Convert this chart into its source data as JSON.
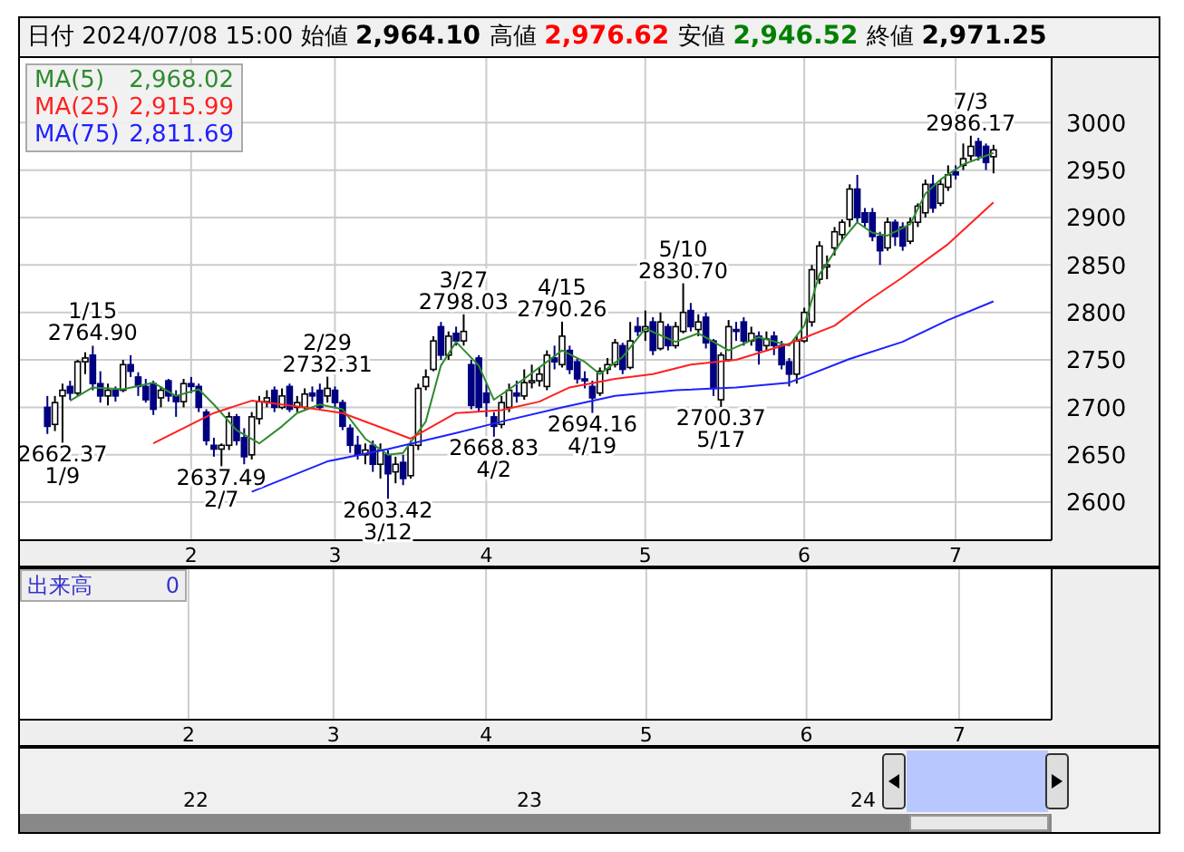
{
  "chart_data": {
    "type": "candlestick",
    "title": "日付 2024/07/08 15:00 始値 2,964.10 高値 2,976.62 安値 2,946.52 終値 2,971.25",
    "colors": [
      "#000080",
      "#ffffff",
      "#ffffff",
      "#000080",
      "#ffffff",
      "#ffffff",
      "#000080",
      "#000080",
      "#ffffff",
      "#000080",
      "#ffffff",
      "#000080",
      "#000080",
      "#000080",
      "#000080",
      "#ffffff",
      "#000080",
      "#000080",
      "#ffffff",
      "#000080",
      "#000080",
      "#000080",
      "#000080",
      "#ffffff",
      "#ffffff",
      "#000080",
      "#000080",
      "#ffffff",
      "#ffffff",
      "#ffffff",
      "#000080",
      "#ffffff",
      "#000080",
      "#ffffff",
      "#ffffff",
      "#000080",
      "#000080",
      "#ffffff",
      "#000080",
      "#000080",
      "#000080",
      "#000080",
      "#ffffff",
      "#000080",
      "#ffffff",
      "#000080",
      "#ffffff",
      "#000080",
      "#ffffff",
      "#ffffff",
      "#ffffff",
      "#ffffff",
      "#000080",
      "#ffffff",
      "#000080",
      "#ffffff",
      "#000080",
      "#000080",
      "#000080",
      "#000080",
      "#ffffff",
      "#ffffff",
      "#000080",
      "#ffffff",
      "#ffffff",
      "#ffffff",
      "#ffffff",
      "#000080",
      "#ffffff",
      "#000080",
      "#000080",
      "#000080",
      "#000080",
      "#ffffff",
      "#ffffff",
      "#ffffff",
      "#000080",
      "#ffffff",
      "#000080",
      "#ffffff",
      "#000080",
      "#ffffff",
      "#000080",
      "#ffffff",
      "#ffffff",
      "#000080",
      "#ffffff",
      "#000080",
      "#000080",
      "#ffffff",
      "#ffffff",
      "#000080",
      "#000080",
      "#ffffff",
      "#000080",
      "#ffffff",
      "#000080",
      "#000080",
      "#000080",
      "#ffffff",
      "#ffffff",
      "#ffffff",
      "#ffffff",
      "#ffffff",
      "#ffffff",
      "#ffffff",
      "#ffffff",
      "#000080",
      "#000080",
      "#000080",
      "#000080",
      "#ffffff",
      "#000080",
      "#000080",
      "#ffffff",
      "#ffffff",
      "#ffffff",
      "#000080",
      "#ffffff",
      "#ffffff",
      "#000080",
      "#ffffff",
      "#ffffff",
      "#000080",
      "#000080",
      "#ffffff"
    ],
    "categories": [
      null,
      null,
      null,
      null,
      null,
      null,
      null,
      null,
      null,
      null,
      null,
      null,
      null,
      null,
      null,
      null,
      null,
      null,
      null,
      "2",
      null,
      null,
      null,
      null,
      null,
      null,
      null,
      null,
      null,
      null,
      null,
      null,
      null,
      null,
      null,
      null,
      null,
      null,
      "3",
      null,
      null,
      null,
      null,
      null,
      null,
      null,
      null,
      null,
      null,
      null,
      null,
      null,
      null,
      null,
      null,
      null,
      null,
      null,
      "4",
      null,
      null,
      null,
      null,
      null,
      null,
      null,
      null,
      null,
      null,
      null,
      null,
      null,
      null,
      null,
      null,
      null,
      null,
      null,
      null,
      "5",
      null,
      null,
      null,
      null,
      null,
      null,
      null,
      null,
      null,
      null,
      null,
      null,
      null,
      null,
      null,
      null,
      null,
      null,
      null,
      null,
      "6",
      null,
      null,
      null,
      null,
      null,
      null,
      null,
      null,
      null,
      null,
      null,
      null,
      null,
      null,
      null,
      null,
      null,
      null,
      null,
      "7",
      null,
      null,
      null,
      null,
      null
    ],
    "ohlc": [
      [
        2700,
        2712,
        2672,
        2680
      ],
      [
        2682,
        2712,
        2675,
        2705
      ],
      [
        2712,
        2725,
        2662.37,
        2718
      ],
      [
        2722,
        2728,
        2708,
        2715
      ],
      [
        2715,
        2750,
        2712,
        2748
      ],
      [
        2748,
        2758,
        2735,
        2752
      ],
      [
        2755,
        2764.9,
        2718,
        2725
      ],
      [
        2725,
        2738,
        2705,
        2712
      ],
      [
        2712,
        2725,
        2702,
        2718
      ],
      [
        2718,
        2722,
        2706,
        2712
      ],
      [
        2718,
        2750,
        2716,
        2745
      ],
      [
        2745,
        2755,
        2732,
        2738
      ],
      [
        2732,
        2737,
        2712,
        2722
      ],
      [
        2722,
        2730,
        2705,
        2708
      ],
      [
        2725,
        2728,
        2692,
        2698
      ],
      [
        2710,
        2722,
        2700,
        2718
      ],
      [
        2728,
        2730,
        2706,
        2712
      ],
      [
        2712,
        2718,
        2690,
        2706
      ],
      [
        2706,
        2730,
        2700,
        2725
      ],
      [
        2725,
        2732,
        2715,
        2722
      ],
      [
        2722,
        2725,
        2695,
        2700
      ],
      [
        2695,
        2698,
        2660,
        2665
      ],
      [
        2660,
        2668,
        2648,
        2656
      ],
      [
        2656,
        2662,
        2637.49,
        2660
      ],
      [
        2660,
        2695,
        2655,
        2690
      ],
      [
        2690,
        2693,
        2660,
        2665
      ],
      [
        2668,
        2678,
        2640,
        2648
      ],
      [
        2650,
        2695,
        2645,
        2690
      ],
      [
        2688,
        2712,
        2682,
        2706
      ],
      [
        2706,
        2718,
        2700,
        2710
      ],
      [
        2718,
        2722,
        2695,
        2700
      ],
      [
        2700,
        2720,
        2698,
        2712
      ],
      [
        2722,
        2725,
        2695,
        2698
      ],
      [
        2700,
        2712,
        2695,
        2705
      ],
      [
        2700,
        2720,
        2698,
        2714
      ],
      [
        2715,
        2722,
        2706,
        2712
      ],
      [
        2718,
        2725,
        2698,
        2700
      ],
      [
        2712,
        2732.31,
        2705,
        2720
      ],
      [
        2718,
        2722,
        2700,
        2705
      ],
      [
        2705,
        2708,
        2676,
        2680
      ],
      [
        2678,
        2682,
        2652,
        2660
      ],
      [
        2660,
        2670,
        2645,
        2650
      ],
      [
        2650,
        2662,
        2640,
        2655
      ],
      [
        2660,
        2665,
        2632,
        2640
      ],
      [
        2640,
        2662,
        2625,
        2655
      ],
      [
        2650,
        2655,
        2603.42,
        2630
      ],
      [
        2632,
        2648,
        2620,
        2640
      ],
      [
        2642,
        2650,
        2618,
        2625
      ],
      [
        2628,
        2665,
        2625,
        2660
      ],
      [
        2660,
        2725,
        2655,
        2720
      ],
      [
        2722,
        2740,
        2718,
        2732
      ],
      [
        2740,
        2775,
        2738,
        2770
      ],
      [
        2785,
        2790,
        2750,
        2755
      ],
      [
        2755,
        2780,
        2750,
        2775
      ],
      [
        2778,
        2785,
        2765,
        2770
      ],
      [
        2770,
        2798.03,
        2765,
        2780
      ],
      [
        2745,
        2750,
        2698,
        2702
      ],
      [
        2752,
        2755,
        2695,
        2700
      ],
      [
        2715,
        2725,
        2690,
        2705
      ],
      [
        2690,
        2695,
        2668.83,
        2680
      ],
      [
        2682,
        2712,
        2678,
        2705
      ],
      [
        2700,
        2725,
        2695,
        2718
      ],
      [
        2715,
        2728,
        2705,
        2712
      ],
      [
        2712,
        2740,
        2708,
        2726
      ],
      [
        2726,
        2745,
        2720,
        2728
      ],
      [
        2728,
        2742,
        2722,
        2735
      ],
      [
        2722,
        2760,
        2718,
        2755
      ],
      [
        2752,
        2765,
        2740,
        2748
      ],
      [
        2745,
        2790.26,
        2742,
        2775
      ],
      [
        2760,
        2765,
        2735,
        2740
      ],
      [
        2748,
        2752,
        2725,
        2730
      ],
      [
        2730,
        2738,
        2720,
        2728
      ],
      [
        2722,
        2728,
        2694.16,
        2710
      ],
      [
        2715,
        2742,
        2712,
        2738
      ],
      [
        2740,
        2752,
        2735,
        2745
      ],
      [
        2745,
        2772,
        2742,
        2768
      ],
      [
        2765,
        2768,
        2735,
        2740
      ],
      [
        2742,
        2790,
        2740,
        2770
      ],
      [
        2785,
        2795,
        2775,
        2780
      ],
      [
        2780,
        2802,
        2770,
        2785
      ],
      [
        2790,
        2795,
        2755,
        2760
      ],
      [
        2762,
        2800,
        2760,
        2790
      ],
      [
        2785,
        2788,
        2760,
        2765
      ],
      [
        2765,
        2790,
        2762,
        2785
      ],
      [
        2780,
        2830.7,
        2778,
        2800
      ],
      [
        2802,
        2810,
        2780,
        2785
      ],
      [
        2782,
        2798,
        2775,
        2790
      ],
      [
        2795,
        2800,
        2762,
        2768
      ],
      [
        2770,
        2772,
        2712,
        2720
      ],
      [
        2708,
        2758,
        2700.37,
        2755
      ],
      [
        2750,
        2792,
        2748,
        2785
      ],
      [
        2782,
        2790,
        2770,
        2780
      ],
      [
        2790,
        2795,
        2765,
        2770
      ],
      [
        2770,
        2785,
        2765,
        2778
      ],
      [
        2775,
        2780,
        2745,
        2760
      ],
      [
        2765,
        2780,
        2760,
        2772
      ],
      [
        2775,
        2780,
        2755,
        2765
      ],
      [
        2765,
        2770,
        2740,
        2745
      ],
      [
        2748,
        2752,
        2722,
        2735
      ],
      [
        2735,
        2775,
        2725,
        2770
      ],
      [
        2770,
        2805,
        2768,
        2800
      ],
      [
        2790,
        2850,
        2785,
        2845
      ],
      [
        2835,
        2875,
        2830,
        2870
      ],
      [
        2848,
        2860,
        2835,
        2850
      ],
      [
        2868,
        2890,
        2860,
        2885
      ],
      [
        2882,
        2898,
        2875,
        2895
      ],
      [
        2898,
        2935,
        2890,
        2930
      ],
      [
        2930,
        2945,
        2895,
        2900
      ],
      [
        2905,
        2910,
        2890,
        2895
      ],
      [
        2905,
        2910,
        2875,
        2880
      ],
      [
        2880,
        2885,
        2850,
        2865
      ],
      [
        2868,
        2900,
        2865,
        2895
      ],
      [
        2895,
        2898,
        2870,
        2880
      ],
      [
        2890,
        2895,
        2865,
        2870
      ],
      [
        2875,
        2900,
        2872,
        2895
      ],
      [
        2895,
        2915,
        2890,
        2912
      ],
      [
        2905,
        2940,
        2900,
        2935
      ],
      [
        2935,
        2945,
        2905,
        2910
      ],
      [
        2915,
        2940,
        2912,
        2935
      ],
      [
        2932,
        2955,
        2928,
        2945
      ],
      [
        2948,
        2955,
        2940,
        2945
      ],
      [
        2955,
        2978,
        2950,
        2962
      ],
      [
        2965,
        2986.17,
        2960,
        2975
      ],
      [
        2980,
        2984,
        2960,
        2965
      ],
      [
        2975,
        2978,
        2950,
        2958
      ],
      [
        2964.1,
        2976.62,
        2946.52,
        2971.25
      ]
    ],
    "series": [
      {
        "type": "line",
        "name": "MA(5)",
        "color": "#2e8b2e",
        "values": [
          null,
          null,
          null,
          2707,
          null,
          null,
          2721,
          null,
          null,
          null,
          2719,
          null,
          null,
          null,
          2726,
          null,
          null,
          2712,
          null,
          null,
          2719,
          null,
          2703,
          null,
          null,
          2676,
          null,
          null,
          2662,
          null,
          null,
          2680,
          null,
          2694,
          null,
          null,
          2703,
          null,
          null,
          2698,
          null,
          null,
          2667,
          null,
          null,
          2650,
          null,
          2652,
          null,
          null,
          2685,
          null,
          2744,
          null,
          2769,
          null,
          null,
          2744,
          null,
          2708,
          null,
          null,
          null,
          2730,
          null,
          null,
          null,
          null,
          2760,
          null,
          null,
          2748,
          null,
          2735,
          null,
          null,
          2753,
          null,
          null,
          2783,
          null,
          null,
          null,
          2769,
          null,
          null,
          2778,
          null,
          null,
          null,
          2760,
          null,
          null,
          null,
          2774,
          null,
          null,
          null,
          2765,
          null,
          2786,
          null,
          2840,
          null,
          null,
          2876,
          null,
          2895,
          null,
          2884,
          null,
          2881,
          null,
          null,
          2893,
          null,
          2925,
          null,
          2940,
          null,
          null,
          2956,
          null,
          null,
          null,
          2968.02
        ]
      },
      {
        "type": "line",
        "name": "MA(25)",
        "color": "#ff2020",
        "values": [
          null,
          null,
          null,
          null,
          null,
          null,
          null,
          null,
          null,
          null,
          null,
          null,
          null,
          null,
          2662,
          null,
          null,
          null,
          null,
          null,
          null,
          null,
          2694,
          null,
          null,
          null,
          null,
          2707,
          null,
          null,
          null,
          null,
          null,
          null,
          2700,
          null,
          null,
          null,
          null,
          2694,
          null,
          null,
          null,
          null,
          null,
          2676,
          null,
          null,
          2667,
          null,
          null,
          null,
          null,
          null,
          2694,
          null,
          null,
          null,
          null,
          null,
          2697,
          null,
          null,
          null,
          null,
          2706,
          null,
          null,
          null,
          2721,
          null,
          null,
          null,
          null,
          null,
          2730,
          null,
          null,
          null,
          null,
          2735,
          null,
          null,
          null,
          null,
          2745,
          null,
          null,
          null,
          null,
          null,
          2750,
          null,
          null,
          null,
          null,
          null,
          null,
          2767,
          null,
          null,
          null,
          null,
          null,
          2786,
          null,
          null,
          null,
          2810,
          null,
          null,
          null,
          null,
          2837,
          null,
          null,
          null,
          null,
          null,
          2872,
          null,
          null,
          null,
          null,
          null,
          2915.99
        ]
      },
      {
        "type": "line",
        "name": "MA(75)",
        "color": "#2020ff",
        "values": [
          null,
          null,
          null,
          null,
          null,
          null,
          null,
          null,
          null,
          null,
          null,
          null,
          null,
          null,
          null,
          null,
          null,
          null,
          null,
          null,
          null,
          null,
          null,
          null,
          null,
          null,
          null,
          2611,
          null,
          null,
          null,
          null,
          null,
          null,
          null,
          null,
          null,
          2643,
          null,
          null,
          null,
          null,
          null,
          null,
          null,
          2656,
          null,
          null,
          null,
          null,
          null,
          null,
          null,
          null,
          2673,
          null,
          null,
          null,
          null,
          null,
          2685,
          null,
          null,
          null,
          null,
          null,
          null,
          null,
          2700,
          null,
          null,
          null,
          null,
          null,
          null,
          2712,
          null,
          null,
          null,
          null,
          null,
          null,
          null,
          2718,
          null,
          null,
          null,
          null,
          null,
          null,
          null,
          2721,
          null,
          null,
          null,
          null,
          null,
          null,
          2726,
          null,
          null,
          null,
          null,
          null,
          null,
          null,
          2751,
          null,
          null,
          null,
          null,
          null,
          null,
          2769,
          null,
          null,
          null,
          null,
          null,
          2792,
          null,
          null,
          null,
          null,
          null,
          2811.69
        ]
      }
    ],
    "ylim": [
      2560,
      3070
    ],
    "yticks": [
      2600,
      2650,
      2700,
      2750,
      2800,
      2850,
      2900,
      2950,
      3000
    ],
    "grid": true,
    "legend": "top left",
    "annotations": [
      {
        "text": "1/15\n2764.90",
        "y": 2764.9
      },
      {
        "text": "2662.37\n1/9",
        "y": 2662.37
      },
      {
        "text": "2637.49\n2/7",
        "y": 2637.49
      },
      {
        "text": "2/29\n2732.31",
        "y": 2732.31
      },
      {
        "text": "2603.42\n3/12",
        "y": 2603.42
      },
      {
        "text": "3/27\n2798.03",
        "y": 2798.03
      },
      {
        "text": "2668.83\n4/2",
        "y": 2668.83
      },
      {
        "text": "4/15\n2790.26",
        "y": 2790.26
      },
      {
        "text": "2694.16\n4/19",
        "y": 2694.16
      },
      {
        "text": "5/10\n2830.70",
        "y": 2830.7
      },
      {
        "text": "2700.37\n5/17",
        "y": 2700.37
      },
      {
        "text": "7/3\n2986.17",
        "y": 2986.17
      },
      "2,968.02",
      "2,915.99",
      "2,811.69",
      "出来高 0",
      "22",
      "23",
      "24"
    ]
  }
}
